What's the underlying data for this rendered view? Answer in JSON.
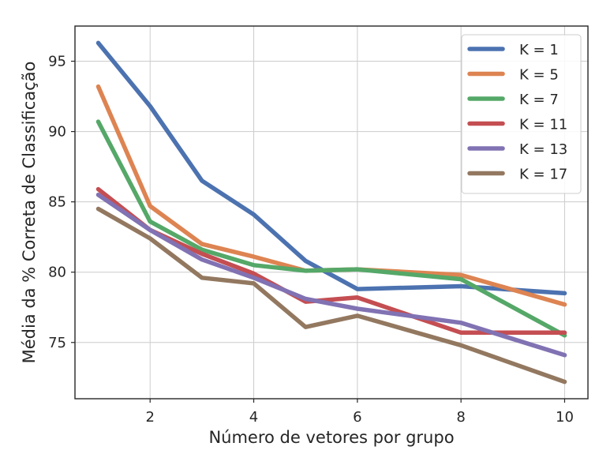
{
  "chart_data": {
    "type": "line",
    "title": "",
    "xlabel": "Número de vetores por grupo",
    "ylabel": "Média da % Correta de Classificação",
    "x": [
      1,
      2,
      3,
      4,
      5,
      6,
      8,
      10
    ],
    "xlim": [
      0.55,
      10.45
    ],
    "ylim": [
      71.0,
      97.5
    ],
    "xticks": [
      2,
      4,
      6,
      8,
      10
    ],
    "yticks": [
      75,
      80,
      85,
      90,
      95
    ],
    "grid": true,
    "legend_position": "top-right",
    "series": [
      {
        "name": "K = 1",
        "color": "#4c72b0",
        "values": [
          96.3,
          91.8,
          86.5,
          84.1,
          80.8,
          78.8,
          79.0,
          78.5
        ]
      },
      {
        "name": "K = 5",
        "color": "#dd8452",
        "values": [
          93.2,
          84.7,
          82.0,
          81.1,
          80.1,
          80.2,
          79.8,
          77.7
        ]
      },
      {
        "name": "K = 7",
        "color": "#55a868",
        "values": [
          90.7,
          83.6,
          81.6,
          80.5,
          80.1,
          80.2,
          79.5,
          75.5
        ]
      },
      {
        "name": "K = 11",
        "color": "#c44e52",
        "values": [
          85.9,
          83.0,
          81.3,
          79.9,
          77.9,
          78.2,
          75.7,
          75.7
        ]
      },
      {
        "name": "K = 13",
        "color": "#8172b3",
        "values": [
          85.5,
          83.0,
          80.9,
          79.6,
          78.1,
          77.4,
          76.4,
          74.1
        ]
      },
      {
        "name": "K = 17",
        "color": "#937860",
        "values": [
          84.5,
          82.4,
          79.6,
          79.2,
          76.1,
          76.9,
          74.8,
          72.2
        ]
      }
    ]
  }
}
